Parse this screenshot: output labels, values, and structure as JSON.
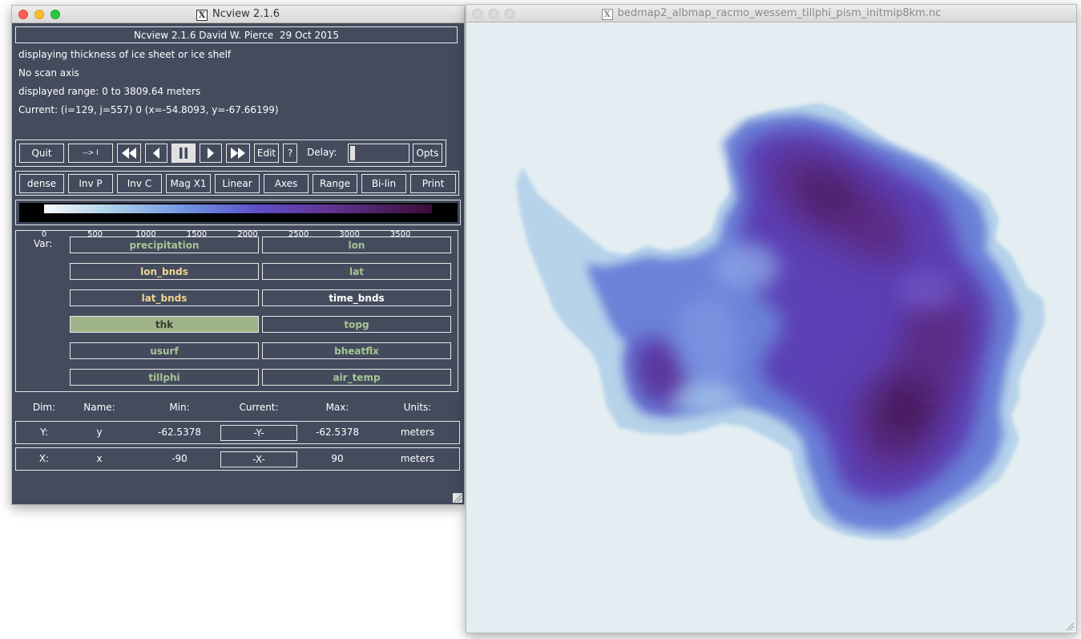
{
  "ncview_window": {
    "title": "Ncview 2.1.6",
    "banner": "Ncview 2.1.6 David W. Pierce  29 Oct 2015",
    "info_lines": [
      "displaying thickness of ice sheet or ice shelf",
      "No scan axis",
      "displayed range: 0 to 3809.64 meters",
      "Current: (i=129, j=557) 0 (x=-54.8093, y=-67.66199)"
    ],
    "controls": {
      "quit": "Quit",
      "restart": "--> I",
      "edit": "Edit",
      "help": "?",
      "delay_label": "Delay:",
      "delay_value": 0.0,
      "opts": "Opts"
    },
    "buttons_row2": [
      "dense",
      "Inv P",
      "Inv C",
      "Mag X1",
      "Linear",
      "Axes",
      "Range",
      "Bi-lin",
      "Print"
    ],
    "colorbar": {
      "ticks": [
        "0",
        "500",
        "1000",
        "1500",
        "2000",
        "2500",
        "3000",
        "3500"
      ],
      "min": 0,
      "max": 3809.64
    },
    "var_label": "Var:",
    "variables": [
      {
        "name": "precipitation",
        "color": "green"
      },
      {
        "name": "lon",
        "color": "green"
      },
      {
        "name": "lon_bnds",
        "color": "yellow"
      },
      {
        "name": "lat",
        "color": "green"
      },
      {
        "name": "lat_bnds",
        "color": "yellow"
      },
      {
        "name": "time_bnds",
        "color": "white"
      },
      {
        "name": "thk",
        "color": "selected"
      },
      {
        "name": "topg",
        "color": "green"
      },
      {
        "name": "usurf",
        "color": "green"
      },
      {
        "name": "bheatflx",
        "color": "green"
      },
      {
        "name": "tillphi",
        "color": "green"
      },
      {
        "name": "air_temp",
        "color": "green"
      }
    ],
    "dim_headers": [
      "Dim:",
      "Name:",
      "Min:",
      "Current:",
      "Max:",
      "Units:"
    ],
    "dims": [
      {
        "dim": "Y:",
        "name": "y",
        "min": "-62.5378",
        "current": "-Y-",
        "max": "-62.5378",
        "units": "meters"
      },
      {
        "dim": "X:",
        "name": "x",
        "min": "-90",
        "current": "-X-",
        "max": "90",
        "units": "meters"
      }
    ]
  },
  "image_window": {
    "title": "bedmap2_albmap_racmo_wessem_tillphi_pism_initmip8km.nc",
    "background_color": "#e4eef2"
  },
  "colors": {
    "panel_bg": "#434b5d",
    "colormap": [
      "#f4f8fa",
      "#a9cfe8",
      "#6d8fe0",
      "#5e4fc9",
      "#61318f",
      "#3a0f36"
    ]
  }
}
